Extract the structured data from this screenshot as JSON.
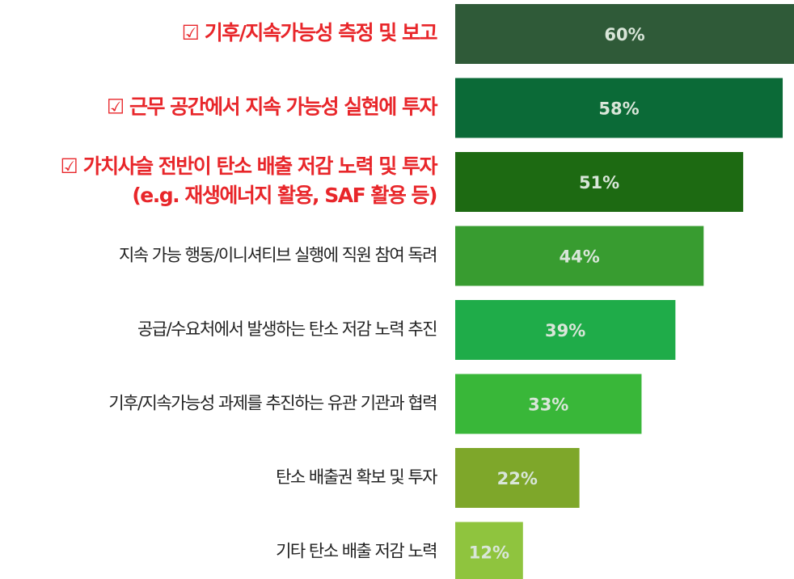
{
  "chart_data": {
    "type": "bar",
    "categories": [
      "☑ 기후/지속가능성 측정 및 보고",
      "☑ 근무 공간에서 지속 가능성 실현에 투자",
      [
        "☑ 가치사슬 전반이 탄소 배출 저감 노력 및 투자",
        "(e.g. 재생에너지 활용, SAF 활용 등)"
      ],
      "지속 가능 행동/이니셔티브 실행에 직원 참여 독려",
      "공급/수요처에서 발생하는 탄소 저감 노력 추진",
      "기후/지속가능성 과제를 추진하는 유관 기관과 협력",
      "탄소 배출권 확보 및 투자",
      "기타 탄소 배출 저감 노력"
    ],
    "values": [
      60,
      58,
      51,
      44,
      39,
      33,
      22,
      12
    ],
    "value_labels": [
      "60%",
      "58%",
      "51%",
      "44%",
      "39%",
      "33%",
      "22%",
      "12%"
    ],
    "colors": [
      "#2f5a38",
      "#0b6a37",
      "#1d6a12",
      "#389c30",
      "#1fac49",
      "#39b739",
      "#7ea72a",
      "#8fc43e"
    ],
    "highlight": [
      true,
      true,
      true,
      false,
      false,
      false,
      false,
      false
    ],
    "xlim": [
      0,
      60
    ]
  }
}
